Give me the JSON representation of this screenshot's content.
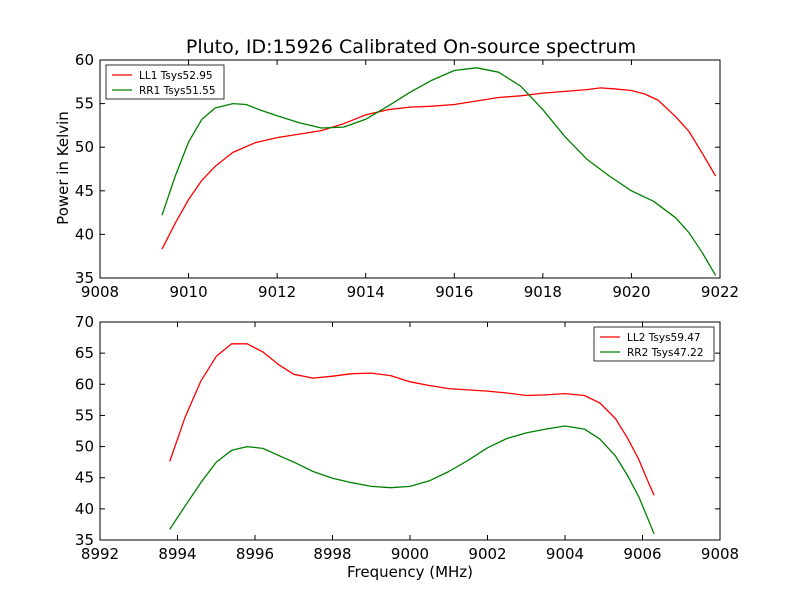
{
  "page": {
    "title": "Pluto, ID:15926 Calibrated On-source spectrum",
    "ylabel": "Power in Kelvin",
    "xlabel": "Frequency (MHz)"
  },
  "chart_data": [
    {
      "type": "line",
      "xlim": [
        9008,
        9022
      ],
      "ylim": [
        35,
        60
      ],
      "xticks": [
        "9008",
        "9010",
        "9012",
        "9014",
        "9016",
        "9018",
        "9020",
        "9022"
      ],
      "yticks": [
        "35",
        "40",
        "45",
        "50",
        "55",
        "60"
      ],
      "legend_position": "top-left",
      "series": [
        {
          "name": "LL1 Tsys52.95",
          "color": "#ff0000",
          "x": [
            9009.4,
            9009.7,
            9010.0,
            9010.3,
            9010.6,
            9011.0,
            9011.5,
            9012.0,
            9012.5,
            9013.0,
            9013.5,
            9014.0,
            9014.5,
            9015.0,
            9015.5,
            9016.0,
            9016.5,
            9017.0,
            9017.5,
            9018.0,
            9018.5,
            9019.0,
            9019.3,
            9019.6,
            9020.0,
            9020.3,
            9020.6,
            9021.0,
            9021.3,
            9021.6,
            9021.9
          ],
          "y": [
            38.3,
            41.3,
            44.0,
            46.2,
            47.8,
            49.4,
            50.5,
            51.1,
            51.5,
            51.9,
            52.7,
            53.7,
            54.3,
            54.6,
            54.7,
            54.9,
            55.3,
            55.7,
            55.9,
            56.2,
            56.4,
            56.6,
            56.8,
            56.7,
            56.5,
            56.1,
            55.4,
            53.5,
            51.8,
            49.3,
            46.7
          ]
        },
        {
          "name": "RR1 Tsys51.55",
          "color": "#008000",
          "x": [
            9009.4,
            9009.7,
            9010.0,
            9010.3,
            9010.6,
            9011.0,
            9011.3,
            9011.6,
            9012.0,
            9012.5,
            9013.0,
            9013.5,
            9014.0,
            9014.5,
            9015.0,
            9015.5,
            9016.0,
            9016.5,
            9017.0,
            9017.5,
            9018.0,
            9018.5,
            9019.0,
            9019.5,
            9020.0,
            9020.5,
            9021.0,
            9021.3,
            9021.6,
            9021.9
          ],
          "y": [
            42.2,
            46.7,
            50.6,
            53.2,
            54.5,
            55.0,
            54.9,
            54.3,
            53.6,
            52.8,
            52.2,
            52.3,
            53.2,
            54.7,
            56.3,
            57.7,
            58.8,
            59.1,
            58.6,
            57.0,
            54.3,
            51.2,
            48.6,
            46.7,
            45.0,
            43.8,
            41.9,
            40.2,
            37.9,
            35.3
          ]
        }
      ]
    },
    {
      "type": "line",
      "xlim": [
        8992,
        9008
      ],
      "ylim": [
        35,
        70
      ],
      "xticks": [
        "8992",
        "8994",
        "8996",
        "8998",
        "9000",
        "9002",
        "9004",
        "9006",
        "9008"
      ],
      "yticks": [
        "35",
        "40",
        "45",
        "50",
        "55",
        "60",
        "65",
        "70"
      ],
      "legend_position": "top-right",
      "series": [
        {
          "name": "LL2 Tsys59.47",
          "color": "#ff0000",
          "x": [
            8993.8,
            8994.2,
            8994.6,
            8995.0,
            8995.4,
            8995.8,
            8996.2,
            8996.6,
            8997.0,
            8997.5,
            8998.0,
            8998.5,
            8999.0,
            8999.5,
            9000.0,
            9000.5,
            9001.0,
            9001.5,
            9002.0,
            9002.5,
            9003.0,
            9003.5,
            9004.0,
            9004.5,
            9004.9,
            9005.3,
            9005.6,
            9005.9,
            9006.1,
            9006.3
          ],
          "y": [
            47.6,
            54.8,
            60.5,
            64.5,
            66.5,
            66.5,
            65.2,
            63.2,
            61.6,
            61.0,
            61.3,
            61.7,
            61.8,
            61.4,
            60.4,
            59.8,
            59.3,
            59.1,
            58.9,
            58.6,
            58.2,
            58.3,
            58.5,
            58.2,
            57.0,
            54.5,
            51.5,
            48.0,
            45.0,
            42.2
          ]
        },
        {
          "name": "RR2 Tsys47.22",
          "color": "#008000",
          "x": [
            8993.8,
            8994.2,
            8994.6,
            8995.0,
            8995.4,
            8995.8,
            8996.2,
            8996.6,
            8997.0,
            8997.5,
            8998.0,
            8998.5,
            8999.0,
            8999.5,
            9000.0,
            9000.5,
            9001.0,
            9001.5,
            9002.0,
            9002.5,
            9003.0,
            9003.5,
            9004.0,
            9004.5,
            9004.9,
            9005.3,
            9005.6,
            9005.9,
            9006.1,
            9006.3
          ],
          "y": [
            36.7,
            40.5,
            44.2,
            47.5,
            49.4,
            50.0,
            49.7,
            48.6,
            47.5,
            46.0,
            44.9,
            44.2,
            43.6,
            43.4,
            43.6,
            44.5,
            46.0,
            47.8,
            49.8,
            51.3,
            52.2,
            52.8,
            53.3,
            52.8,
            51.2,
            48.5,
            45.5,
            42.0,
            39.0,
            36.0
          ]
        }
      ]
    }
  ]
}
